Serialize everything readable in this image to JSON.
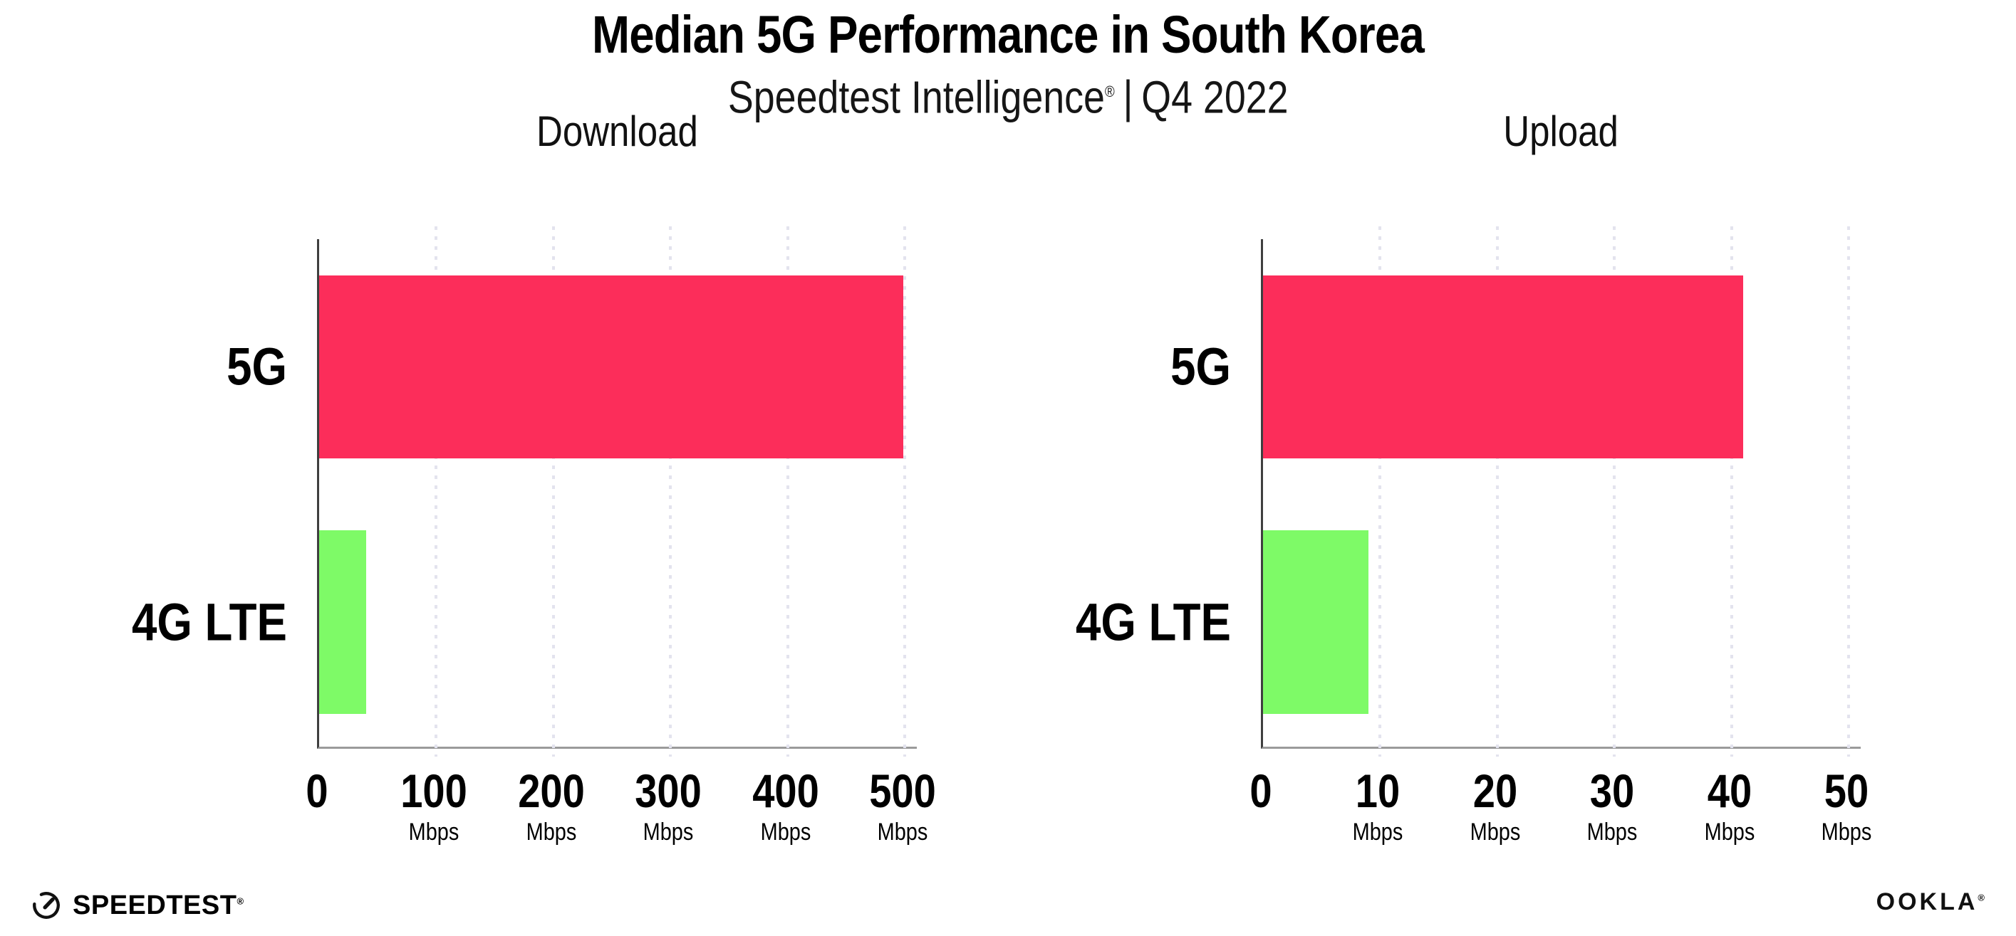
{
  "header": {
    "title": "Median 5G Performance in South Korea",
    "subtitle_brand": "Speedtest Intelligence",
    "subtitle_reg": "®",
    "subtitle_sep": "|",
    "subtitle_period": "Q4 2022"
  },
  "colors": {
    "bar_5g": "#fc2d5a",
    "bar_4g": "#7efa67",
    "gridline": "#e3e3ee",
    "y_axis": "#3f3f3f",
    "x_axis": "#9b9b9b",
    "text": "#000000"
  },
  "chart_data": [
    {
      "type": "bar",
      "orientation": "horizontal",
      "title": "Download",
      "categories": [
        "5G",
        "4G LTE"
      ],
      "values": [
        499,
        40
      ],
      "unit": "Mbps",
      "xlim": [
        0,
        500
      ],
      "xticks": [
        0,
        100,
        200,
        300,
        400,
        500
      ],
      "tick_unit_label": "Mbps",
      "bar_colors": [
        "#fc2d5a",
        "#7efa67"
      ],
      "grid": "dotted-vertical",
      "legend": "none"
    },
    {
      "type": "bar",
      "orientation": "horizontal",
      "title": "Upload",
      "categories": [
        "5G",
        "4G LTE"
      ],
      "values": [
        41,
        9
      ],
      "unit": "Mbps",
      "xlim": [
        0,
        50
      ],
      "xticks": [
        0,
        10,
        20,
        30,
        40,
        50
      ],
      "tick_unit_label": "Mbps",
      "bar_colors": [
        "#fc2d5a",
        "#7efa67"
      ],
      "grid": "dotted-vertical",
      "legend": "none"
    }
  ],
  "footer": {
    "speedtest_label": "SPEEDTEST",
    "speedtest_reg": "®",
    "ookla_label": "OOKLA",
    "ookla_reg": "®"
  }
}
